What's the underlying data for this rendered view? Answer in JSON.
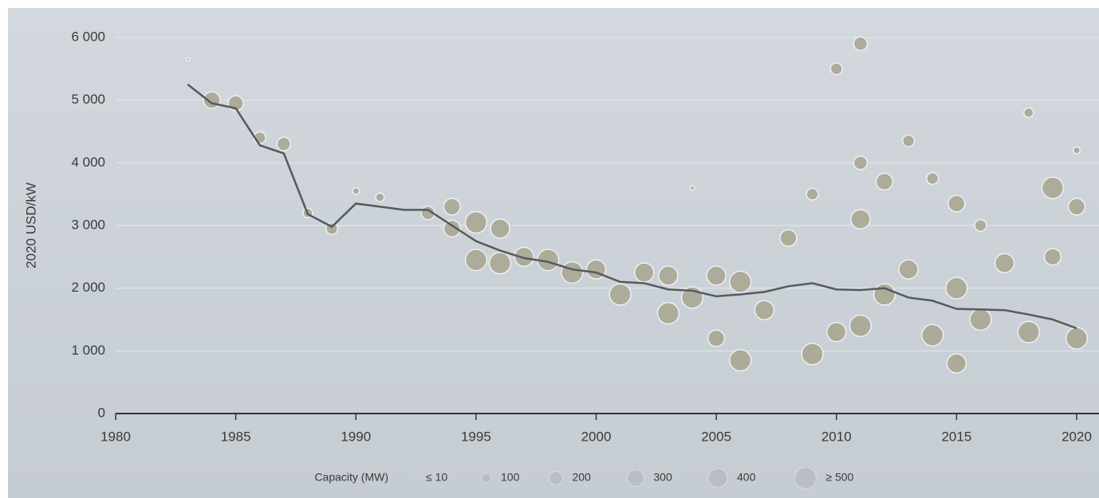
{
  "chart_data": {
    "type": "line",
    "y_label": "2020 USD/kW",
    "xlim": [
      1980,
      2020
    ],
    "ylim": [
      0,
      6000
    ],
    "xticks": [
      1980,
      1985,
      1990,
      1995,
      2000,
      2005,
      2010,
      2015,
      2020
    ],
    "yticks": [
      0,
      {
        "value": 1000,
        "label": "1 000"
      },
      {
        "value": 2000,
        "label": "2 000"
      },
      {
        "value": 3000,
        "label": "3 000"
      },
      {
        "value": 4000,
        "label": "4 000"
      },
      {
        "value": 5000,
        "label": "5 000"
      },
      {
        "value": 6000,
        "label": "6 000"
      }
    ],
    "grid": true,
    "series": [
      {
        "color": "#555a5e",
        "x": [
          1983,
          1984,
          1985,
          1986,
          1987,
          1988,
          1989,
          1990,
          1991,
          1992,
          1993,
          1994,
          1995,
          1996,
          1997,
          1998,
          1999,
          2000,
          2001,
          2002,
          2003,
          2004,
          2005,
          2006,
          2007,
          2008,
          2009,
          2010,
          2011,
          2012,
          2013,
          2014,
          2015,
          2016,
          2017,
          2018,
          2019,
          2020
        ],
        "values": [
          5250,
          4950,
          4870,
          4280,
          4150,
          3180,
          2980,
          3350,
          3300,
          3250,
          3250,
          3000,
          2750,
          2600,
          2480,
          2420,
          2300,
          2250,
          2100,
          2080,
          1980,
          1960,
          1870,
          1900,
          1940,
          2030,
          2080,
          1980,
          1970,
          2000,
          1850,
          1800,
          1670,
          1660,
          1650,
          1580,
          1500,
          1360
        ]
      }
    ],
    "bubbles": {
      "type": "scatter",
      "color": "#aba996",
      "x": [
        1983,
        1984,
        1985,
        1986,
        1987,
        1988,
        1989,
        1990,
        1991,
        1993,
        1994,
        1994,
        1995,
        1995,
        1996,
        1996,
        1997,
        1998,
        1999,
        2000,
        2001,
        2002,
        2003,
        2003,
        2004,
        2004,
        2005,
        2005,
        2006,
        2006,
        2007,
        2008,
        2009,
        2009,
        2010,
        2010,
        2011,
        2011,
        2011,
        2011,
        2012,
        2012,
        2013,
        2013,
        2014,
        2014,
        2015,
        2015,
        2015,
        2016,
        2016,
        2017,
        2018,
        2018,
        2019,
        2019,
        2020,
        2020,
        2020
      ],
      "values": [
        5650,
        5000,
        4950,
        4400,
        4300,
        3200,
        2950,
        3550,
        3450,
        3200,
        3300,
        2950,
        3050,
        2450,
        2950,
        2400,
        2500,
        2450,
        2250,
        2300,
        1900,
        2250,
        1600,
        2200,
        1850,
        3600,
        2200,
        1200,
        850,
        2100,
        1650,
        2800,
        950,
        3500,
        5500,
        1300,
        5900,
        4000,
        3100,
        1400,
        3700,
        1900,
        4350,
        2300,
        3750,
        1250,
        800,
        3350,
        2000,
        3000,
        1500,
        2400,
        4800,
        1300,
        3600,
        2500,
        3300,
        1200,
        4200
      ],
      "sizes": [
        10,
        300,
        250,
        150,
        200,
        100,
        150,
        50,
        80,
        200,
        300,
        300,
        500,
        500,
        400,
        500,
        400,
        500,
        500,
        400,
        500,
        400,
        500,
        400,
        500,
        20,
        400,
        300,
        500,
        500,
        400,
        300,
        500,
        150,
        150,
        400,
        200,
        200,
        400,
        500,
        300,
        500,
        150,
        400,
        150,
        500,
        400,
        300,
        500,
        150,
        500,
        400,
        100,
        500,
        500,
        300,
        300,
        500,
        50
      ]
    },
    "size_legend": {
      "title": "Capacity (MW)",
      "items": [
        {
          "value": 10,
          "label": "≤ 10"
        },
        100,
        200,
        300,
        400,
        {
          "value": 500,
          "label": "≥ 500"
        }
      ]
    }
  }
}
